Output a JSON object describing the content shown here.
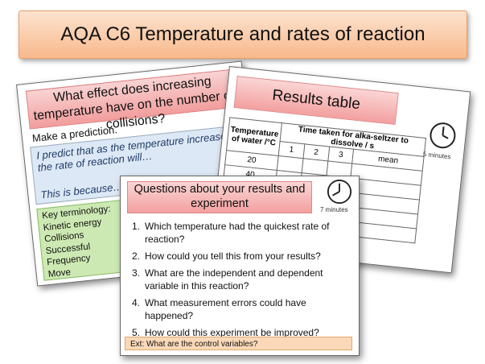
{
  "banner": {
    "title": "AQA C6 Temperature and rates of reaction"
  },
  "slide_left": {
    "question": "What effect does increasing temperature have on the number of collisions?",
    "prompt": "Make a prediction.",
    "predict": "I predict that as the temperature increases the rate of reaction will…",
    "because": "This is because…",
    "key_title": "Key terminology:",
    "terms": [
      "Kinetic energy",
      "Collisions",
      "Successful",
      "Frequency",
      "Move"
    ]
  },
  "slide_right": {
    "title": "Results table",
    "timer": "5 minutes",
    "col_temp": "Temperature of water /°C",
    "col_time": "Time taken for alka-seltzer to dissolve / s",
    "sub_cols": [
      "1",
      "2",
      "3",
      "mean"
    ],
    "rows": [
      "20",
      "40"
    ]
  },
  "slide_front": {
    "title": "Questions about your results and experiment",
    "timer": "7 minutes",
    "questions": [
      {
        "n": "1.",
        "text": "Which temperature had the quickest rate of reaction?"
      },
      {
        "n": "2.",
        "text": "How could you tell this from your results?"
      },
      {
        "n": "3.",
        "text": "What are the independent and dependent variable in this reaction?"
      },
      {
        "n": "4.",
        "text": "What measurement errors could have happened?"
      },
      {
        "n": "5.",
        "text": "How could this experiment be improved?"
      }
    ],
    "extension": "Ext: What are the control variables?"
  },
  "colors": {
    "banner": "#f8b98c",
    "title_box": "#f29d9d",
    "blue_box": "#dde8f6",
    "green_box": "#cde9b3",
    "ext_box": "#fbd9b8"
  }
}
